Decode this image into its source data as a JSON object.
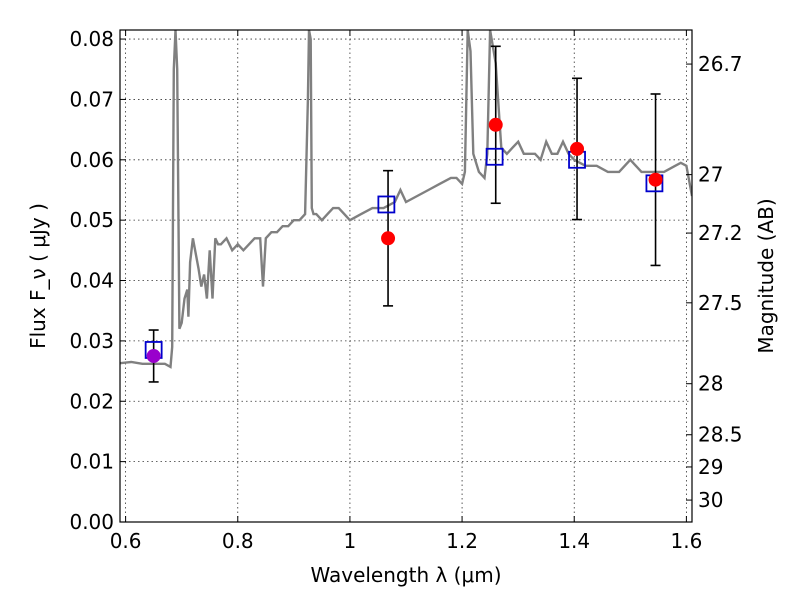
{
  "chart_data": {
    "type": "scatter",
    "title": "",
    "xlabel": "Wavelength λ (μm)",
    "ylabel": "Flux F_ν ( μJy )",
    "y2label": "Magnitude (AB)",
    "xlim": [
      0.59,
      1.61
    ],
    "ylim": [
      0.0,
      0.0815
    ],
    "grid": true,
    "x_ticks": [
      0.6,
      0.8,
      1.0,
      1.2,
      1.4,
      1.6
    ],
    "x_tick_labels": [
      "0.6",
      "0.8",
      "1",
      "1.2",
      "1.4",
      "1.6"
    ],
    "y_ticks": [
      0.0,
      0.01,
      0.02,
      0.03,
      0.04,
      0.05,
      0.06,
      0.07,
      0.08
    ],
    "y_tick_labels": [
      "0.00",
      "0.01",
      "0.02",
      "0.03",
      "0.04",
      "0.05",
      "0.06",
      "0.07",
      "0.08"
    ],
    "y2_tick_labels": [
      "26.7",
      "27",
      "27.2",
      "27.5",
      "28",
      "28.5",
      "29",
      "30"
    ],
    "zeropoint_mag": 23.9,
    "colors": {
      "model": "#808080",
      "observed": "#ff0000",
      "model_photometry": "#0000cc",
      "highlight": "#9900cc",
      "errorbar": "#000000"
    },
    "series": [
      {
        "type": "line",
        "x": [
          0.59,
          0.61,
          0.63,
          0.65,
          0.66,
          0.67,
          0.68,
          0.683,
          0.686,
          0.689,
          0.692,
          0.696,
          0.7,
          0.705,
          0.71,
          0.712,
          0.715,
          0.72,
          0.73,
          0.735,
          0.74,
          0.745,
          0.75,
          0.755,
          0.76,
          0.765,
          0.77,
          0.78,
          0.785,
          0.79,
          0.8,
          0.81,
          0.82,
          0.83,
          0.84,
          0.845,
          0.85,
          0.86,
          0.87,
          0.88,
          0.89,
          0.9,
          0.91,
          0.92,
          0.925,
          0.927,
          0.93,
          0.932,
          0.935,
          0.94,
          0.95,
          0.96,
          0.97,
          0.98,
          0.99,
          1.0,
          1.02,
          1.04,
          1.06,
          1.08,
          1.09,
          1.1,
          1.12,
          1.14,
          1.16,
          1.18,
          1.19,
          1.2,
          1.205,
          1.21,
          1.215,
          1.22,
          1.23,
          1.24,
          1.245,
          1.25,
          1.26,
          1.27,
          1.28,
          1.29,
          1.3,
          1.31,
          1.32,
          1.33,
          1.34,
          1.35,
          1.36,
          1.37,
          1.38,
          1.39,
          1.4,
          1.42,
          1.44,
          1.46,
          1.48,
          1.5,
          1.52,
          1.54,
          1.56,
          1.58,
          1.59,
          1.6,
          1.61
        ],
        "y": [
          0.0263,
          0.0265,
          0.0262,
          0.0262,
          0.0262,
          0.0262,
          0.0257,
          0.029,
          0.075,
          0.0815,
          0.075,
          0.032,
          0.033,
          0.037,
          0.0385,
          0.034,
          0.043,
          0.047,
          0.042,
          0.039,
          0.041,
          0.037,
          0.045,
          0.037,
          0.047,
          0.046,
          0.046,
          0.047,
          0.046,
          0.045,
          0.046,
          0.045,
          0.046,
          0.047,
          0.047,
          0.039,
          0.047,
          0.048,
          0.048,
          0.049,
          0.049,
          0.05,
          0.05,
          0.051,
          0.07,
          0.0815,
          0.08,
          0.052,
          0.051,
          0.051,
          0.05,
          0.051,
          0.052,
          0.052,
          0.051,
          0.05,
          0.051,
          0.052,
          0.052,
          0.053,
          0.055,
          0.053,
          0.054,
          0.055,
          0.056,
          0.057,
          0.057,
          0.056,
          0.058,
          0.0815,
          0.078,
          0.061,
          0.058,
          0.057,
          0.061,
          0.0815,
          0.076,
          0.062,
          0.061,
          0.062,
          0.063,
          0.061,
          0.061,
          0.061,
          0.06,
          0.063,
          0.061,
          0.061,
          0.063,
          0.061,
          0.06,
          0.059,
          0.059,
          0.058,
          0.058,
          0.06,
          0.058,
          0.058,
          0.058,
          0.059,
          0.0595,
          0.059,
          0.054
        ]
      },
      {
        "type": "scatter",
        "marker": "circle",
        "x": [
          1.068,
          1.26,
          1.405,
          1.545
        ],
        "y": [
          0.047,
          0.0658,
          0.0618,
          0.0567
        ],
        "err_low": [
          0.0112,
          0.013,
          0.0117,
          0.0142
        ],
        "err_high": [
          0.0112,
          0.013,
          0.0117,
          0.0142
        ]
      },
      {
        "type": "scatter",
        "marker": "circle",
        "x": [
          0.65
        ],
        "y": [
          0.0275
        ],
        "err_low": [
          0.0043
        ],
        "err_high": [
          0.0043
        ]
      },
      {
        "type": "scatter",
        "marker": "square",
        "x": [
          0.65,
          1.065,
          1.258,
          1.405,
          1.543
        ],
        "y": [
          0.0285,
          0.0526,
          0.0605,
          0.06,
          0.0561
        ]
      }
    ]
  }
}
